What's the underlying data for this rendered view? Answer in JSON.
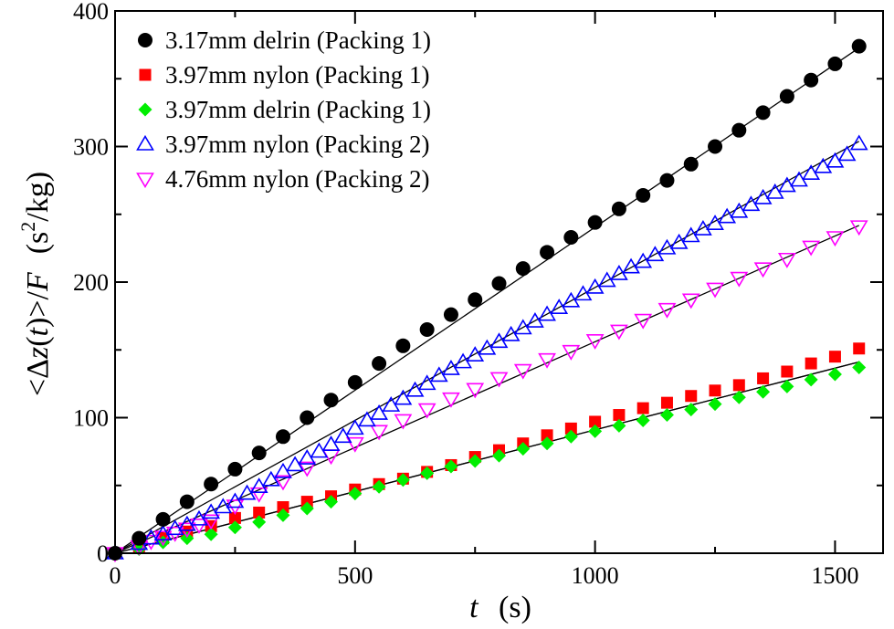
{
  "chart_data": {
    "type": "scatter",
    "title": "",
    "xlabel": {
      "var": "t",
      "unit": "(s)"
    },
    "ylabel": {
      "prefix": "<Δ",
      "var_z": "z",
      "paren_open": "(",
      "var_t": "t",
      "paren_close_gt": ")>/",
      "var_F": "F",
      "unit_open": "(s",
      "unit_sup": "2",
      "unit_close": "/kg)"
    },
    "xlim": [
      0,
      1600
    ],
    "ylim": [
      0,
      400
    ],
    "xticks": [
      0,
      500,
      1000,
      1500
    ],
    "yticks": [
      0,
      100,
      200,
      300,
      400
    ],
    "xtick_labels": [
      "0",
      "500",
      "1000",
      "1500"
    ],
    "ytick_labels": [
      "0",
      "100",
      "200",
      "300",
      "400"
    ],
    "legend_position": "top-left",
    "series": [
      {
        "name": "3.17mm delrin (Packing 1)",
        "marker": "circle-filled",
        "color": "#000000",
        "fit_slope": 0.2405,
        "x": [
          0,
          50,
          100,
          150,
          200,
          250,
          300,
          350,
          400,
          450,
          500,
          550,
          600,
          650,
          700,
          750,
          800,
          850,
          900,
          950,
          1000,
          1050,
          1100,
          1150,
          1200,
          1250,
          1300,
          1350,
          1400,
          1450,
          1500,
          1550
        ],
        "y": [
          0,
          11,
          25,
          38,
          51,
          62,
          74,
          86,
          100,
          113,
          126,
          140,
          153,
          165,
          176,
          187,
          199,
          210,
          222,
          233,
          244,
          254,
          264,
          275,
          287,
          300,
          312,
          325,
          337,
          349,
          361,
          374
        ]
      },
      {
        "name": "3.97mm nylon (Packing 1)",
        "marker": "square-filled",
        "color": "#ff0000",
        "fit_slope": 0.091,
        "x": [
          0,
          50,
          100,
          150,
          200,
          250,
          300,
          350,
          400,
          450,
          500,
          550,
          600,
          650,
          700,
          750,
          800,
          850,
          900,
          950,
          1000,
          1050,
          1100,
          1150,
          1200,
          1250,
          1300,
          1350,
          1400,
          1450,
          1500,
          1550
        ],
        "y": [
          0,
          5,
          11,
          16,
          20,
          26,
          30,
          34,
          38,
          42,
          47,
          51,
          55,
          60,
          65,
          71,
          76,
          81,
          87,
          92,
          97,
          102,
          107,
          111,
          116,
          120,
          124,
          129,
          134,
          140,
          145,
          151
        ]
      },
      {
        "name": "3.97mm delrin (Packing 1)",
        "marker": "diamond-filled",
        "color": "#00ee00",
        "fit_slope": 0.091,
        "x": [
          0,
          50,
          100,
          150,
          200,
          250,
          300,
          350,
          400,
          450,
          500,
          550,
          600,
          650,
          700,
          750,
          800,
          850,
          900,
          950,
          1000,
          1050,
          1100,
          1150,
          1200,
          1250,
          1300,
          1350,
          1400,
          1450,
          1500,
          1550
        ],
        "y": [
          0,
          3,
          8,
          11,
          14,
          19,
          23,
          28,
          33,
          38,
          44,
          49,
          54,
          59,
          64,
          68,
          72,
          77,
          81,
          86,
          90,
          94,
          98,
          102,
          106,
          110,
          115,
          119,
          123,
          128,
          132,
          137
        ]
      },
      {
        "name": "3.97mm nylon (Packing 2)",
        "marker": "triangle-up-open",
        "color": "#0000ff",
        "fit_slope": 0.196,
        "x": [
          0,
          50,
          75,
          100,
          125,
          150,
          175,
          200,
          225,
          250,
          275,
          300,
          325,
          350,
          375,
          400,
          425,
          450,
          475,
          500,
          525,
          550,
          575,
          600,
          625,
          650,
          675,
          700,
          725,
          750,
          775,
          800,
          825,
          850,
          875,
          900,
          925,
          950,
          975,
          1000,
          1025,
          1050,
          1075,
          1100,
          1125,
          1150,
          1175,
          1200,
          1225,
          1250,
          1275,
          1300,
          1325,
          1350,
          1375,
          1400,
          1425,
          1450,
          1475,
          1500,
          1525,
          1550
        ],
        "y": [
          0,
          7,
          11,
          14,
          18,
          21,
          25,
          30,
          34,
          38,
          44,
          49,
          54,
          60,
          65,
          70,
          75,
          80,
          86,
          92,
          98,
          103,
          109,
          114,
          120,
          125,
          131,
          136,
          141,
          146,
          151,
          156,
          161,
          166,
          171,
          176,
          181,
          186,
          191,
          196,
          201,
          206,
          211,
          215,
          220,
          225,
          229,
          234,
          239,
          243,
          248,
          252,
          257,
          262,
          266,
          271,
          275,
          280,
          285,
          289,
          294,
          302
        ]
      },
      {
        "name": "4.76mm nylon (Packing 2)",
        "marker": "triangle-down-open",
        "color": "#ff00ff",
        "fit_slope": 0.156,
        "x": [
          0,
          50,
          75,
          100,
          125,
          150,
          175,
          200,
          250,
          300,
          350,
          400,
          450,
          500,
          550,
          600,
          650,
          700,
          750,
          800,
          850,
          900,
          950,
          1000,
          1050,
          1100,
          1150,
          1200,
          1250,
          1300,
          1350,
          1400,
          1450,
          1500,
          1550
        ],
        "y": [
          0,
          5,
          9,
          12,
          15,
          18,
          21,
          24,
          35,
          44,
          53,
          63,
          72,
          81,
          90,
          98,
          106,
          114,
          121,
          129,
          135,
          143,
          149,
          157,
          164,
          172,
          180,
          187,
          195,
          203,
          210,
          217,
          226,
          233,
          241
        ]
      }
    ]
  }
}
